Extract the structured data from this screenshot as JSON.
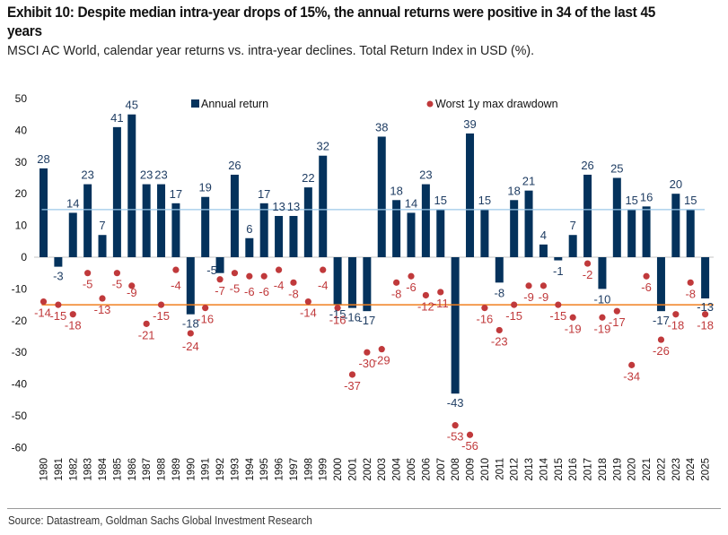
{
  "header": {
    "title": "Exhibit 10: Despite median intra-year drops of 15%, the annual returns were positive in 34 of the last 45 years",
    "subtitle": "MSCI AC World, calendar year returns vs. intra-year declines. Total Return Index in USD (%)."
  },
  "footer": {
    "source": "Source: Datastream, Goldman Sachs Global Investment Research"
  },
  "colors": {
    "bar": "#04325c",
    "dot": "#c0393b",
    "bar_label": "#1f3d63",
    "dot_label": "#c0393b",
    "median_return_line": "#9cc8e8",
    "median_drawdown_line": "#f07f1f",
    "zero_line": "#d9d9d9"
  },
  "chart_data": {
    "type": "bar",
    "title": "Exhibit 10: Despite median intra-year drops of 15%, the annual returns were positive in 34 of the last 45 years",
    "subtitle": "MSCI AC World, calendar year returns vs. intra-year declines. Total Return Index in USD (%).",
    "xlabel": "",
    "ylabel": "",
    "ylim": [
      -60,
      50
    ],
    "yticks": [
      50,
      40,
      30,
      20,
      10,
      0,
      -10,
      -20,
      -30,
      -40,
      -50,
      -60
    ],
    "grid": false,
    "legend_position": "top",
    "categories": [
      "1980",
      "1981",
      "1982",
      "1983",
      "1984",
      "1985",
      "1986",
      "1987",
      "1988",
      "1989",
      "1990",
      "1991",
      "1992",
      "1993",
      "1994",
      "1995",
      "1996",
      "1997",
      "1998",
      "1999",
      "2000",
      "2001",
      "2002",
      "2003",
      "2004",
      "2005",
      "2006",
      "2007",
      "2008",
      "2009",
      "2010",
      "2011",
      "2012",
      "2013",
      "2014",
      "2015",
      "2016",
      "2017",
      "2018",
      "2019",
      "2020",
      "2021",
      "2022",
      "2023",
      "2024",
      "2025"
    ],
    "series": [
      {
        "name": "Annual return",
        "type": "bar",
        "values": [
          28,
          -3,
          14,
          23,
          7,
          41,
          45,
          23,
          23,
          17,
          -18,
          19,
          -5,
          26,
          6,
          17,
          13,
          13,
          22,
          32,
          -15,
          -16,
          -17,
          38,
          18,
          14,
          23,
          15,
          -43,
          39,
          15,
          -8,
          18,
          21,
          4,
          -1,
          7,
          26,
          -10,
          25,
          15,
          16,
          -17,
          20,
          15,
          -13
        ]
      },
      {
        "name": "Worst 1y max drawdown",
        "type": "scatter",
        "values": [
          -14,
          -15,
          -18,
          -5,
          -13,
          -5,
          -9,
          -21,
          -15,
          -4,
          -24,
          -16,
          -7,
          -5,
          -6,
          -6,
          -4,
          -8,
          -14,
          -4,
          -16,
          -37,
          -30,
          -29,
          -8,
          -6,
          -12,
          -11,
          -53,
          -56,
          -16,
          -23,
          -15,
          -9,
          -9,
          -15,
          -19,
          -2,
          -19,
          -17,
          -34,
          -6,
          -26,
          -18,
          -8,
          -18
        ]
      }
    ],
    "reference_lines": [
      {
        "name": "Median annual return",
        "value": 15
      },
      {
        "name": "Median intra-year drawdown",
        "value": -15
      }
    ]
  }
}
